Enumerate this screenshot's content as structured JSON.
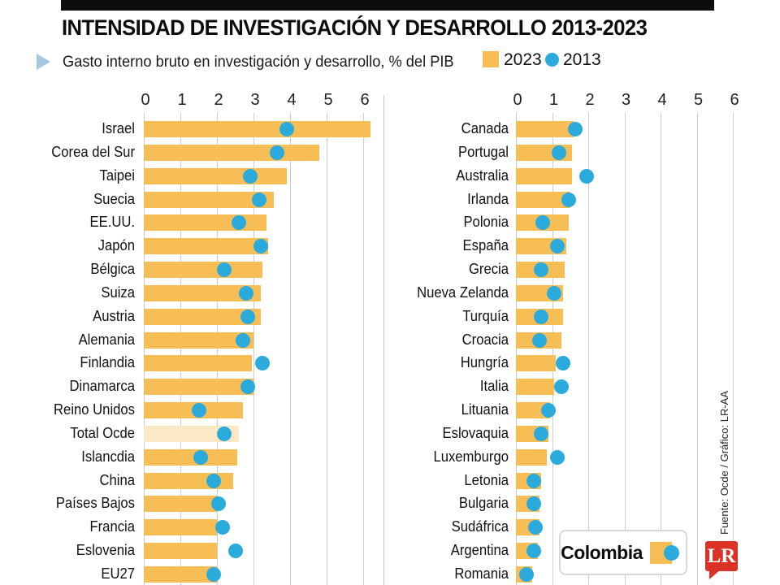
{
  "header": {
    "title": "INTENSIDAD DE INVESTIGACIÓN Y DESARROLLO 2013-2023",
    "subtitle": "Gasto interno bruto en investigación y desarrollo, % del PIB",
    "legend_2023": "2023",
    "legend_2013": "2013"
  },
  "callout": {
    "label": "Colombia"
  },
  "source": {
    "credit": "Fuente: Ocde / Gráfico: LR-AA",
    "logo": "LR"
  },
  "colors": {
    "ink": "#0d0d0d",
    "bar": "#F7BE56",
    "bar_highlight": "#FBE9C6",
    "dot": "#2BABDC",
    "grid": "#CCCCCC",
    "red": "#DA3227",
    "triangle": "#A6C7E0"
  },
  "chart_data": {
    "type": "bar",
    "orientation": "horizontal",
    "title": "INTENSIDAD DE INVESTIGACIÓN Y DESARROLLO 2013-2023",
    "xlabel": "% del PIB",
    "x_ticks": [
      0,
      1,
      2,
      3,
      4,
      5,
      6
    ],
    "xlim": [
      0,
      6
    ],
    "grid": true,
    "legend_position": "top",
    "series_names": [
      "2023",
      "2013"
    ],
    "panels": [
      {
        "categories": [
          "Israel",
          "Corea del Sur",
          "Taipei",
          "Suecia",
          "EE.UU.",
          "Japón",
          "Bélgica",
          "Suiza",
          "Austria",
          "Alemania",
          "Finlandia",
          "Dinamarca",
          "Reino Unidos",
          "Total Ocde",
          "Islancdia",
          "China",
          "Países Bajos",
          "Francia",
          "Eslovenia",
          "EU27"
        ],
        "series": [
          {
            "name": "2023",
            "marker": "bar",
            "values": [
              6.2,
              4.8,
              3.9,
              3.55,
              3.35,
              3.4,
              3.25,
              3.2,
              3.2,
              3.0,
              2.95,
              3.0,
              2.7,
              2.6,
              2.55,
              2.45,
              2.0,
              2.0,
              2.0,
              2.0
            ]
          },
          {
            "name": "2013",
            "marker": "dot",
            "values": [
              3.9,
              3.65,
              2.9,
              3.15,
              2.6,
              3.2,
              2.2,
              2.8,
              2.85,
              2.7,
              3.25,
              2.85,
              1.5,
              2.2,
              1.55,
              1.9,
              2.05,
              2.15,
              2.5,
              1.9
            ]
          }
        ],
        "highlight_category": "Total Ocde",
        "highlight_index": 13
      },
      {
        "categories": [
          "Canada",
          "Portugal",
          "Australia",
          "Irlanda",
          "Polonia",
          "España",
          "Grecia",
          "Nueva Zelanda",
          "Turquía",
          "Croacia",
          "Hungría",
          "Italia",
          "Lituania",
          "Eslovaquia",
          "Luxemburgo",
          "Letonia",
          "Bulgaria",
          "Sudáfrica",
          "Argentina",
          "Romania"
        ],
        "series": [
          {
            "name": "2023",
            "marker": "bar",
            "values": [
              1.6,
              1.55,
              1.55,
              1.5,
              1.45,
              1.4,
              1.35,
              1.3,
              1.3,
              1.25,
              1.1,
              1.05,
              0.95,
              0.9,
              0.85,
              0.7,
              0.65,
              0.65,
              0.6,
              0.45
            ]
          },
          {
            "name": "2013",
            "marker": "dot",
            "values": [
              1.65,
              1.2,
              1.95,
              1.45,
              0.75,
              1.15,
              0.7,
              1.05,
              0.7,
              0.65,
              1.3,
              1.25,
              0.9,
              0.7,
              1.15,
              0.5,
              0.5,
              0.55,
              0.5,
              0.3
            ]
          }
        ],
        "highlight_index": -1
      }
    ]
  }
}
